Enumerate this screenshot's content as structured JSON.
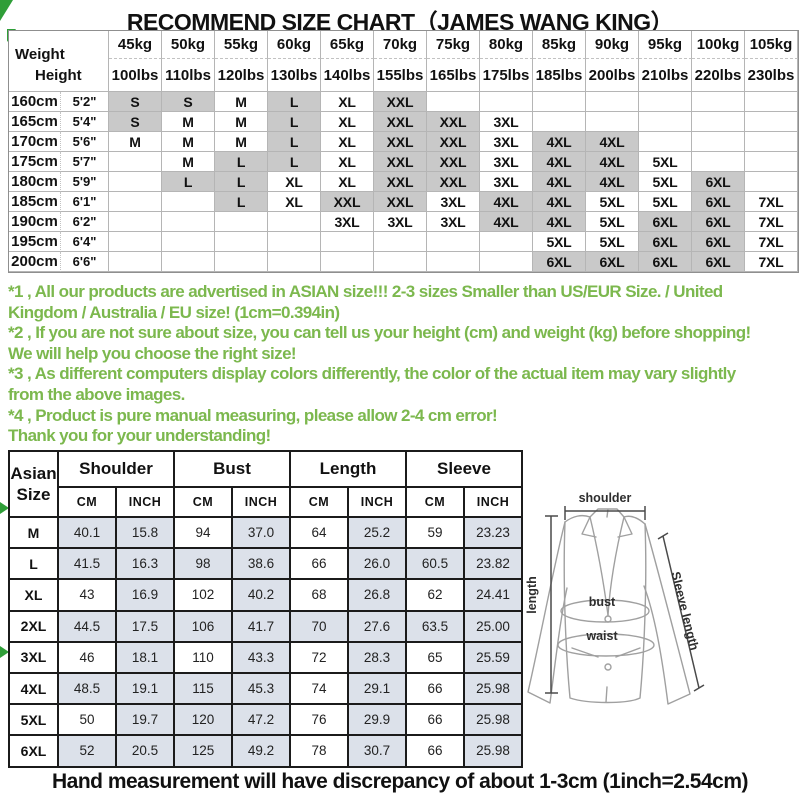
{
  "title": "RECOMMEND SIZE CHART（JAMES WANG KING）",
  "footer": "Hand measurement will have discrepancy of about 1-3cm (1inch=2.54cm)",
  "colors": {
    "note_green": "#7cb84e",
    "wedge_green": "#2f9e38",
    "matrix_gray": "#c9c9c9",
    "cell_shade": "#dce1ea"
  },
  "notes": {
    "lines": [
      "*1 , All our products are advertised in ASIAN size!!! 2-3 sizes Smaller than US/EUR Size. / United",
      "Kingdom / Australia / EU size! (1cm=0.394in)",
      "*2 , If you are not sure about size, you can tell us your height (cm) and weight (kg) before shopping!",
      "We will help you choose the right size!",
      "*3 , As different computers display colors differently, the color of the actual item may vary slightly",
      "from the above images.",
      "*4 , Product is pure manual measuring, please allow 2-4 cm error!",
      "Thank you for your understanding!"
    ]
  },
  "diagram": {
    "shoulder": "shoulder",
    "length": "length",
    "sleeve": "Sleeve length",
    "bust": "bust",
    "waist": "waist"
  },
  "chart_data": [
    {
      "type": "table",
      "name": "recommended-size-matrix",
      "corner": {
        "top": "Weight",
        "bottom": "Height"
      },
      "columns_kg": [
        "45kg",
        "50kg",
        "55kg",
        "60kg",
        "65kg",
        "70kg",
        "75kg",
        "80kg",
        "85kg",
        "90kg",
        "95kg",
        "100kg",
        "105kg"
      ],
      "columns_lbs": [
        "100lbs",
        "110lbs",
        "120lbs",
        "130lbs",
        "140lbs",
        "155lbs",
        "165lbs",
        "175lbs",
        "185lbs",
        "200lbs",
        "210lbs",
        "220lbs",
        "230lbs"
      ],
      "gray_sizes": [
        "S",
        "L",
        "XXL",
        "4XL",
        "6XL"
      ],
      "rows": [
        {
          "cm": "160cm",
          "ft": "5'2\"",
          "sizes": [
            "S",
            "S",
            "M",
            "L",
            "XL",
            "XXL",
            "",
            "",
            "",
            "",
            "",
            "",
            ""
          ]
        },
        {
          "cm": "165cm",
          "ft": "5'4\"",
          "sizes": [
            "S",
            "M",
            "M",
            "L",
            "XL",
            "XXL",
            "XXL",
            "3XL",
            "",
            "",
            "",
            "",
            ""
          ]
        },
        {
          "cm": "170cm",
          "ft": "5'6\"",
          "sizes": [
            "M",
            "M",
            "M",
            "L",
            "XL",
            "XXL",
            "XXL",
            "3XL",
            "4XL",
            "4XL",
            "",
            "",
            ""
          ]
        },
        {
          "cm": "175cm",
          "ft": "5'7\"",
          "sizes": [
            "",
            "M",
            "L",
            "L",
            "XL",
            "XXL",
            "XXL",
            "3XL",
            "4XL",
            "4XL",
            "5XL",
            "",
            ""
          ]
        },
        {
          "cm": "180cm",
          "ft": "5'9\"",
          "sizes": [
            "",
            "L",
            "L",
            "XL",
            "XL",
            "XXL",
            "XXL",
            "3XL",
            "4XL",
            "4XL",
            "5XL",
            "6XL",
            ""
          ]
        },
        {
          "cm": "185cm",
          "ft": "6'1\"",
          "sizes": [
            "",
            "",
            "L",
            "XL",
            "XXL",
            "XXL",
            "3XL",
            "4XL",
            "4XL",
            "5XL",
            "5XL",
            "6XL",
            "7XL"
          ]
        },
        {
          "cm": "190cm",
          "ft": "6'2\"",
          "sizes": [
            "",
            "",
            "",
            "",
            "3XL",
            "3XL",
            "3XL",
            "4XL",
            "4XL",
            "5XL",
            "6XL",
            "6XL",
            "7XL"
          ]
        },
        {
          "cm": "195cm",
          "ft": "6'4\"",
          "sizes": [
            "",
            "",
            "",
            "",
            "",
            "",
            "",
            "",
            "5XL",
            "5XL",
            "6XL",
            "6XL",
            "7XL"
          ]
        },
        {
          "cm": "200cm",
          "ft": "6'6\"",
          "sizes": [
            "",
            "",
            "",
            "",
            "",
            "",
            "",
            "",
            "6XL",
            "6XL",
            "6XL",
            "6XL",
            "7XL"
          ]
        }
      ]
    },
    {
      "type": "table",
      "name": "garment-measurements",
      "corner": [
        "Asian",
        "Size"
      ],
      "groups": [
        "Shoulder",
        "Bust",
        "Length",
        "Sleeve"
      ],
      "units": [
        "CM",
        "INCH"
      ],
      "rows": [
        {
          "size": "M",
          "values": [
            "40.1",
            "15.8",
            "94",
            "37.0",
            "64",
            "25.2",
            "59",
            "23.23"
          ],
          "shaded": [
            1,
            1,
            0,
            1,
            0,
            1,
            0,
            1
          ]
        },
        {
          "size": "L",
          "values": [
            "41.5",
            "16.3",
            "98",
            "38.6",
            "66",
            "26.0",
            "60.5",
            "23.82"
          ],
          "shaded": [
            1,
            1,
            1,
            1,
            0,
            1,
            1,
            1
          ]
        },
        {
          "size": "XL",
          "values": [
            "43",
            "16.9",
            "102",
            "40.2",
            "68",
            "26.8",
            "62",
            "24.41"
          ],
          "shaded": [
            0,
            1,
            0,
            1,
            0,
            1,
            0,
            1
          ]
        },
        {
          "size": "2XL",
          "values": [
            "44.5",
            "17.5",
            "106",
            "41.7",
            "70",
            "27.6",
            "63.5",
            "25.00"
          ],
          "shaded": [
            1,
            1,
            1,
            1,
            1,
            1,
            1,
            1
          ]
        },
        {
          "size": "3XL",
          "values": [
            "46",
            "18.1",
            "110",
            "43.3",
            "72",
            "28.3",
            "65",
            "25.59"
          ],
          "shaded": [
            0,
            1,
            0,
            1,
            0,
            1,
            0,
            1
          ]
        },
        {
          "size": "4XL",
          "values": [
            "48.5",
            "19.1",
            "115",
            "45.3",
            "74",
            "29.1",
            "66",
            "25.98"
          ],
          "shaded": [
            1,
            1,
            1,
            1,
            0,
            1,
            0,
            1
          ]
        },
        {
          "size": "5XL",
          "values": [
            "50",
            "19.7",
            "120",
            "47.2",
            "76",
            "29.9",
            "66",
            "25.98"
          ],
          "shaded": [
            0,
            1,
            1,
            1,
            0,
            1,
            0,
            1
          ]
        },
        {
          "size": "6XL",
          "values": [
            "52",
            "20.5",
            "125",
            "49.2",
            "78",
            "30.7",
            "66",
            "25.98"
          ],
          "shaded": [
            1,
            1,
            1,
            1,
            0,
            1,
            0,
            1
          ]
        }
      ]
    }
  ]
}
